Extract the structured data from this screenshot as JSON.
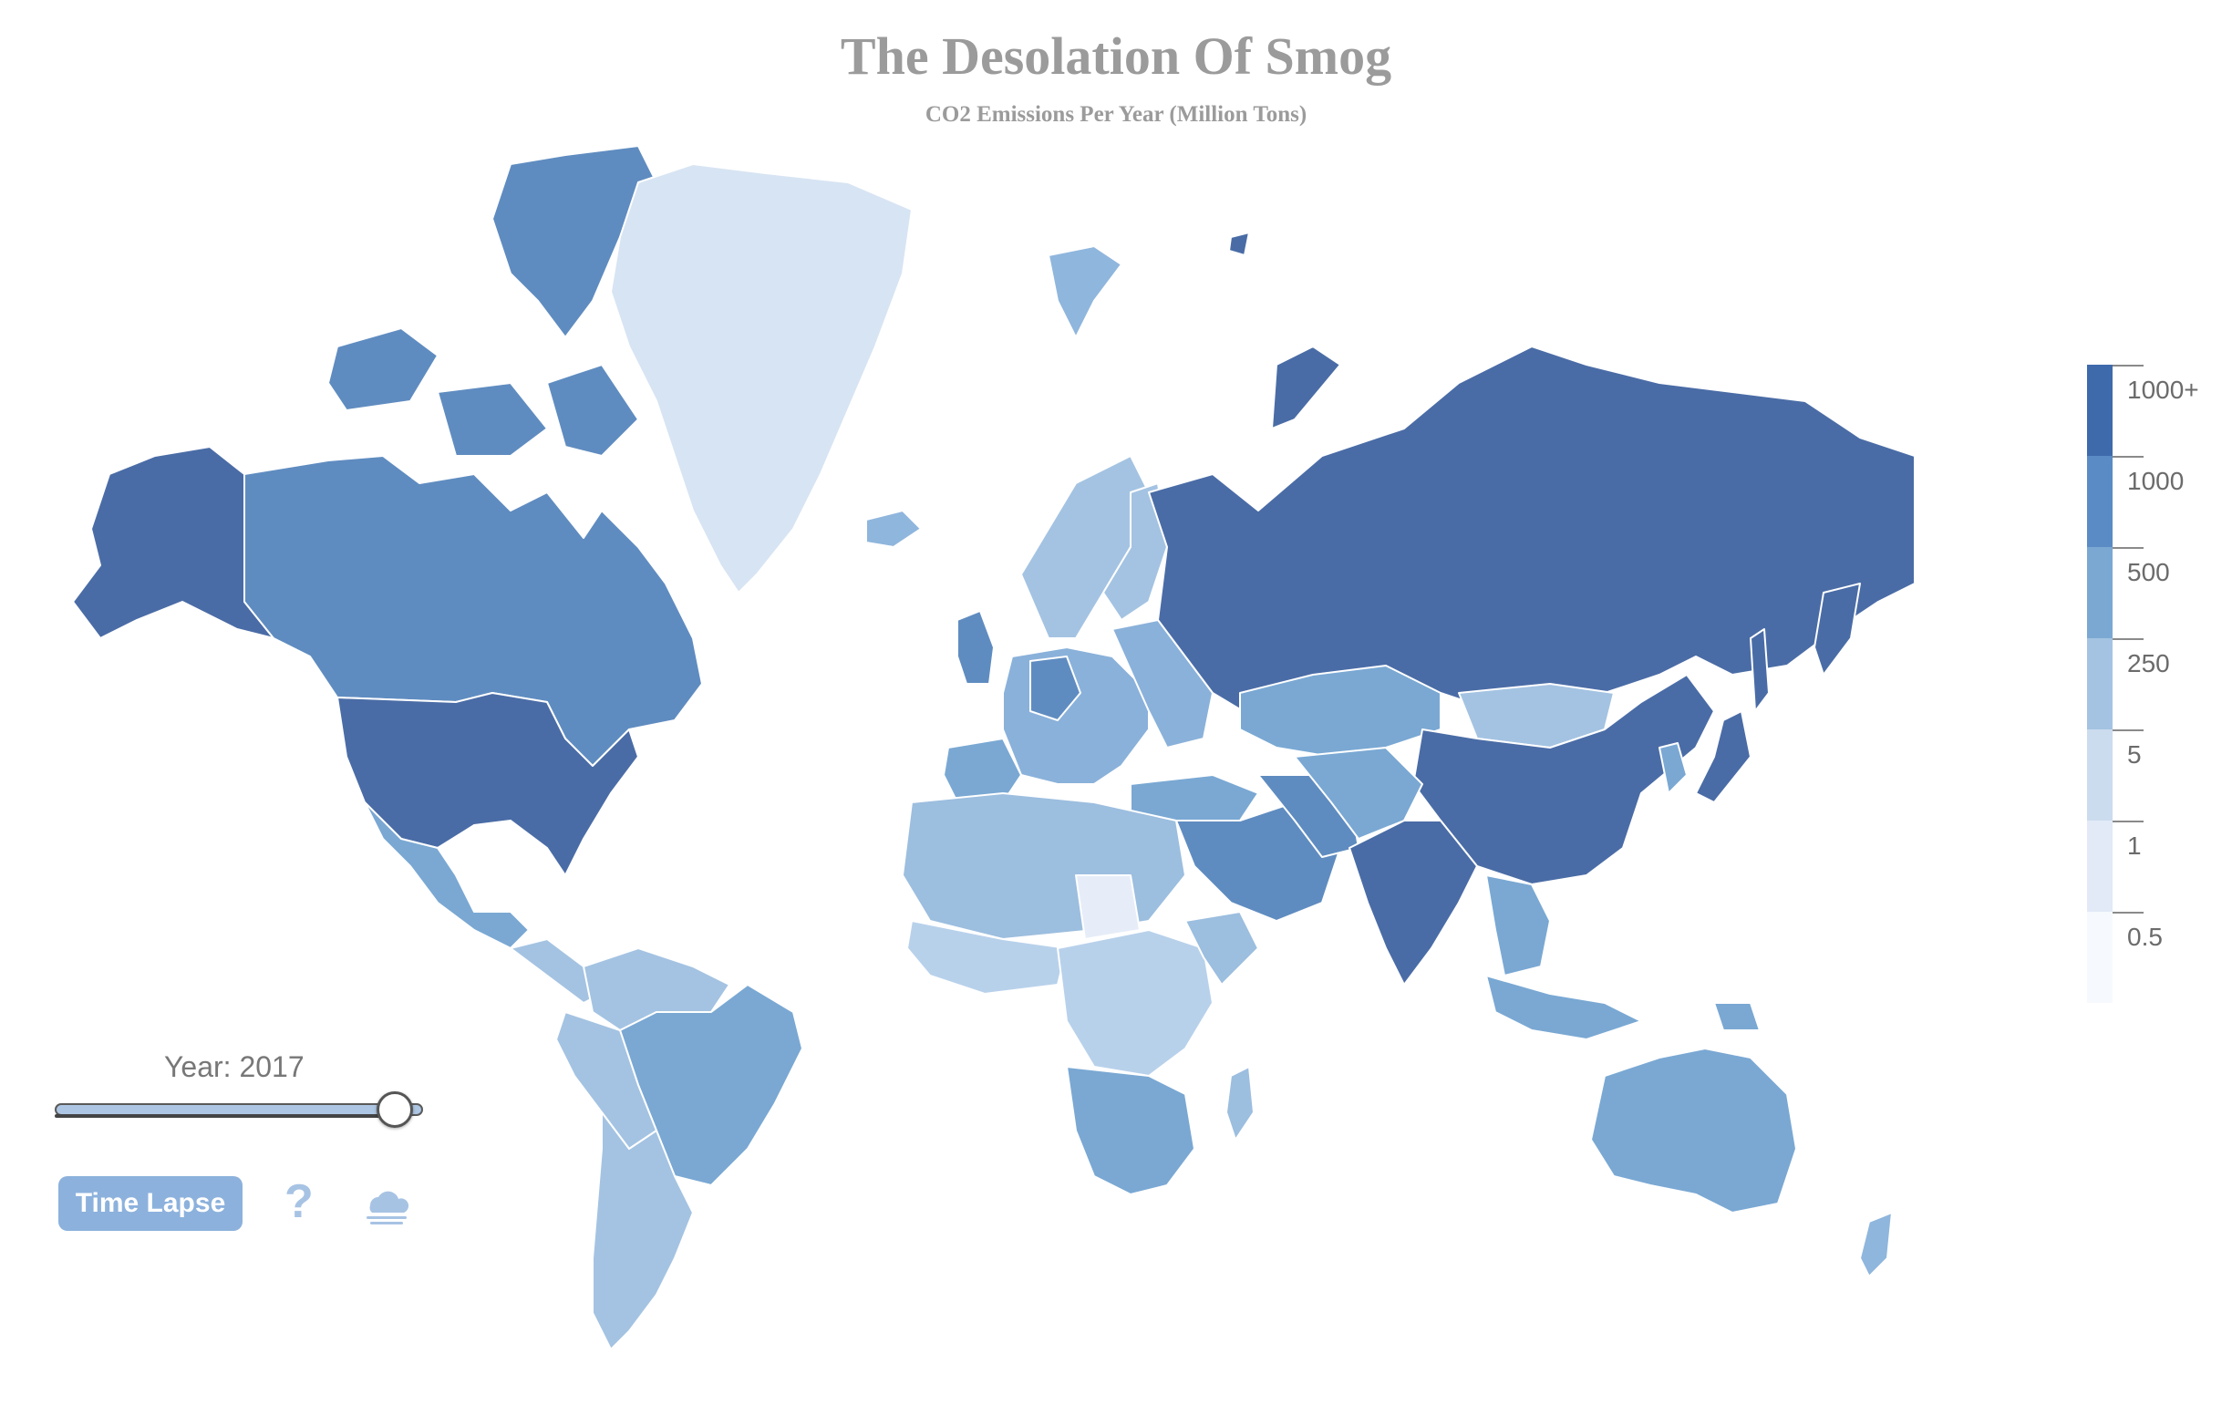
{
  "header": {
    "title": "The Desolation Of Smog",
    "subtitle": "CO2 Emissions Per Year (Million Tons)"
  },
  "legend": {
    "items": [
      {
        "label": "1000+",
        "color": "#3e6aab"
      },
      {
        "label": "1000",
        "color": "#5a8bc4"
      },
      {
        "label": "500",
        "color": "#7aa8d3"
      },
      {
        "label": "250",
        "color": "#a4c3e2"
      },
      {
        "label": "5",
        "color": "#cbdcee"
      },
      {
        "label": "1",
        "color": "#e1eaf6"
      },
      {
        "label": "0.5",
        "color": "#f6f9fd"
      }
    ]
  },
  "controls": {
    "year_label": "Year: 2017",
    "slider_value_fraction": 0.97,
    "time_lapse_label": "Time Lapse",
    "help_glyph": "?",
    "help_icon": "question-mark-icon",
    "smog_icon": "smog-cloud-icon",
    "accent": "#8cb1dc"
  },
  "map_colors": {
    "russia": "#4a6ca6",
    "usa": "#4a6ca6",
    "china": "#4a6ca6",
    "india": "#4a6ca6",
    "canada": "#5f8cc0",
    "australia": "#7aa8d3",
    "brazil": "#7aa8d3",
    "greenland": "#d7e4f3",
    "africa_north": "#9cbedf",
    "africa_central": "#b8d1eb",
    "africa_south": "#7aa8d3",
    "europe": "#8ab1da",
    "middle_east": "#5f8cc0",
    "south_america": "#a4c3e2",
    "mexico": "#7aa8d3",
    "asia_central": "#7aa8d3",
    "se_asia": "#7aa8d3",
    "japan": "#4a6ca6",
    "mongolia": "#a4c3e2",
    "scandinavia": "#a4c3e2",
    "uk": "#5f8cc0",
    "svalbard": "#8fb6dd",
    "nz": "#8fb6dd",
    "sudan_pale": "#e6edf8"
  }
}
